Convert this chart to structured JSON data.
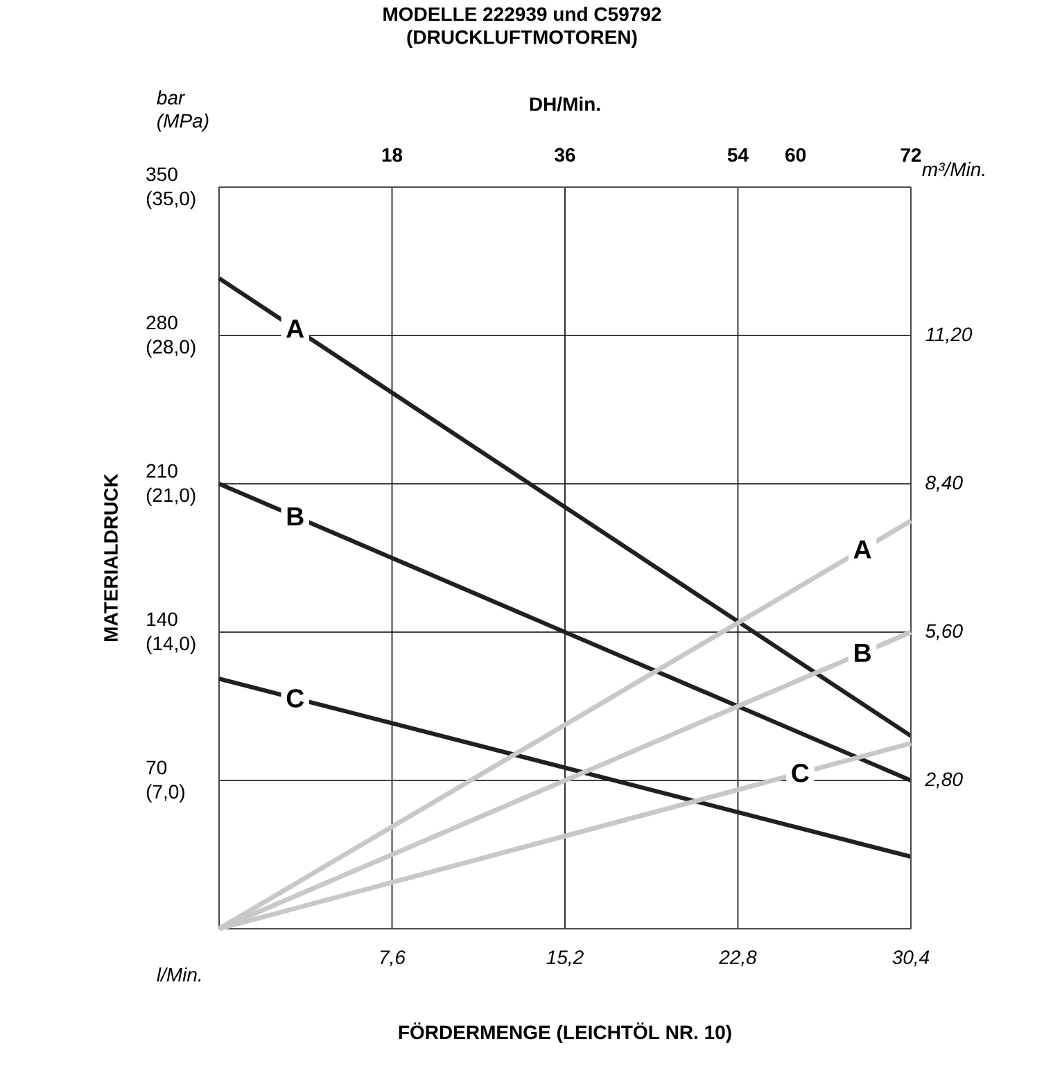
{
  "chart_data": {
    "type": "line",
    "title": "MODELLE 222939 und C59792",
    "subtitle": "(DRUCKLUFTMOTOREN)",
    "xlabel": "FÖRDERMENGE (LEICHTÖL NR. 10)",
    "ylabel": "MATERIALDRUCK",
    "x2label": "DH/Min.",
    "annotations": [
      "bar (MPa)",
      "l/Min.",
      "m³/Min."
    ],
    "x": [
      0,
      30.4
    ],
    "xlim": [
      0,
      30.4
    ],
    "xticks": [
      {
        "value": 7.6,
        "label": "7,6"
      },
      {
        "value": 15.2,
        "label": "15,2"
      },
      {
        "value": 22.8,
        "label": "22,8"
      },
      {
        "value": 30.4,
        "label": "30,4"
      }
    ],
    "x2lim": [
      0,
      72
    ],
    "x2ticks": [
      18,
      36,
      54,
      60,
      72
    ],
    "ylim": [
      0,
      350
    ],
    "yticks": [
      70,
      140,
      210,
      280,
      350
    ],
    "y3lim": [
      0,
      35
    ],
    "y3ticks": [
      {
        "value": 7,
        "label": "(7,0)"
      },
      {
        "value": 14,
        "label": "(14,0)"
      },
      {
        "value": 21,
        "label": "(21,0)"
      },
      {
        "value": 28,
        "label": "(28,0)"
      },
      {
        "value": 35,
        "label": "(35,0)"
      }
    ],
    "y2lim": [
      0,
      14
    ],
    "y2ticks": [
      {
        "value": 2.8,
        "label": "2,80"
      },
      {
        "value": 5.6,
        "label": "5,60"
      },
      {
        "value": 8.4,
        "label": "8,40"
      },
      {
        "value": 11.2,
        "label": "11,20"
      }
    ],
    "grid": true,
    "marker": "none",
    "line_style": "solid",
    "series": [
      {
        "name": "A",
        "color": "#231f20",
        "values": [
          307,
          91
        ]
      },
      {
        "name": "B",
        "color": "#231f20",
        "values": [
          210,
          70
        ]
      },
      {
        "name": "C",
        "color": "#231f20",
        "values": [
          118,
          34
        ]
      },
      {
        "name": "A",
        "color": "#c8c8c8",
        "axis": "y2",
        "values": [
          0,
          7.7
        ]
      },
      {
        "name": "B",
        "color": "#c8c8c8",
        "axis": "y2",
        "values": [
          0,
          5.6
        ]
      },
      {
        "name": "C",
        "color": "#c8c8c8",
        "axis": "y2",
        "values": [
          0,
          3.5
        ]
      }
    ]
  }
}
